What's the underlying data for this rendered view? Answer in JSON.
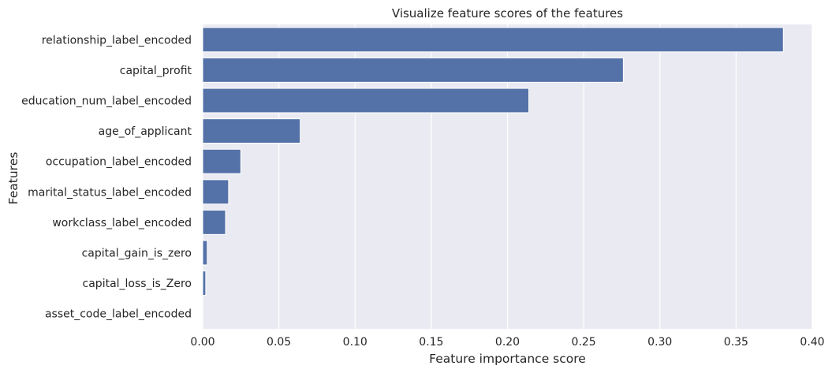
{
  "chart_data": {
    "type": "bar",
    "orientation": "horizontal",
    "title": "Visualize feature scores of the features",
    "xlabel": "Feature importance score",
    "ylabel": "Features",
    "xlim": [
      0,
      0.4
    ],
    "xticks": [
      "0.00",
      "0.05",
      "0.10",
      "0.15",
      "0.20",
      "0.25",
      "0.30",
      "0.35",
      "0.40"
    ],
    "grid": true,
    "bar_color": "#5472a8",
    "background_color": "#eaeaf2",
    "categories": [
      "relationship_label_encoded",
      "capital_profit",
      "education_num_label_encoded",
      "age_of_applicant",
      "occupation_label_encoded",
      "marital_status_label_encoded",
      "workclass_label_encoded",
      "capital_gain_is_zero",
      "capital_loss_is_Zero",
      "asset_code_label_encoded"
    ],
    "values": [
      0.381,
      0.276,
      0.214,
      0.064,
      0.025,
      0.017,
      0.015,
      0.003,
      0.002,
      0.0
    ]
  }
}
